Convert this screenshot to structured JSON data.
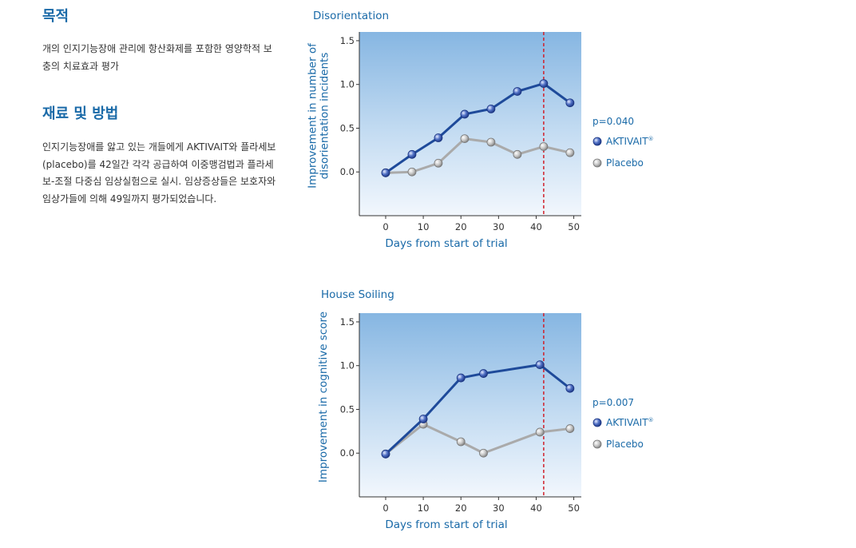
{
  "left": {
    "purpose_heading": "목적",
    "purpose_text": "개의 인지기능장애 관리에 항산화제를 포함한 영양학적 보충의 치료효과 평가",
    "methods_heading": "재료 및 방법",
    "methods_text": "인지기능장애를 앓고 있는 개들에게 AKTIVAIT와 플라세보(placebo)를 42일간 각각 공급하여 이중맹검법과 플라세보-조절 다중심 임상실험으로 실시. 임상증상들은 보호자와 임상가들에 의해 49일까지 평가되었습니다."
  },
  "colors": {
    "aktivait": "#1e4a9a",
    "placebo": "#aaaaaa",
    "marker_line": "#d0202a",
    "text_blue": "#1a6aa8"
  },
  "chart_data": [
    {
      "type": "line",
      "title": "Disorientation",
      "xlabel": "Days from start of trial",
      "ylabel": [
        "Improvement in number of",
        "disorientation incidents"
      ],
      "xlim": [
        -7,
        52
      ],
      "ylim": [
        -0.5,
        1.6
      ],
      "xticks": [
        0,
        10,
        20,
        30,
        40,
        50
      ],
      "yticks": [
        0.0,
        0.5,
        1.0,
        1.5
      ],
      "ytick_labels": [
        "0.0",
        "0.5",
        "1.0",
        "1.5"
      ],
      "vline_x": 42,
      "p_value": "p=0.040",
      "series": [
        {
          "name": "AKTIVAIT",
          "x": [
            0,
            7,
            14,
            21,
            28,
            35,
            42,
            49
          ],
          "y": [
            -0.01,
            0.2,
            0.39,
            0.66,
            0.72,
            0.92,
            1.01,
            0.79
          ]
        },
        {
          "name": "Placebo",
          "x": [
            0,
            7,
            14,
            21,
            28,
            35,
            42,
            49
          ],
          "y": [
            -0.01,
            0.0,
            0.1,
            0.38,
            0.34,
            0.2,
            0.29,
            0.22
          ]
        }
      ]
    },
    {
      "type": "line",
      "title": "House Soiling",
      "xlabel": "Days from start of trial",
      "ylabel": [
        "Improvement in cognitive score"
      ],
      "xlim": [
        -7,
        52
      ],
      "ylim": [
        -0.5,
        1.6
      ],
      "xticks": [
        0,
        10,
        20,
        30,
        40,
        50
      ],
      "yticks": [
        0.0,
        0.5,
        1.0,
        1.5
      ],
      "ytick_labels": [
        "0.0",
        "0.5",
        "1.0",
        "1.5"
      ],
      "vline_x": 42,
      "p_value": "p=0.007",
      "series": [
        {
          "name": "AKTIVAIT",
          "x": [
            0,
            10,
            20,
            26,
            41,
            49
          ],
          "y": [
            -0.01,
            0.39,
            0.86,
            0.91,
            1.01,
            0.74
          ]
        },
        {
          "name": "Placebo",
          "x": [
            0,
            10,
            20,
            26,
            41,
            49
          ],
          "y": [
            -0.01,
            0.33,
            0.13,
            0.0,
            0.24,
            0.28
          ]
        }
      ]
    }
  ]
}
